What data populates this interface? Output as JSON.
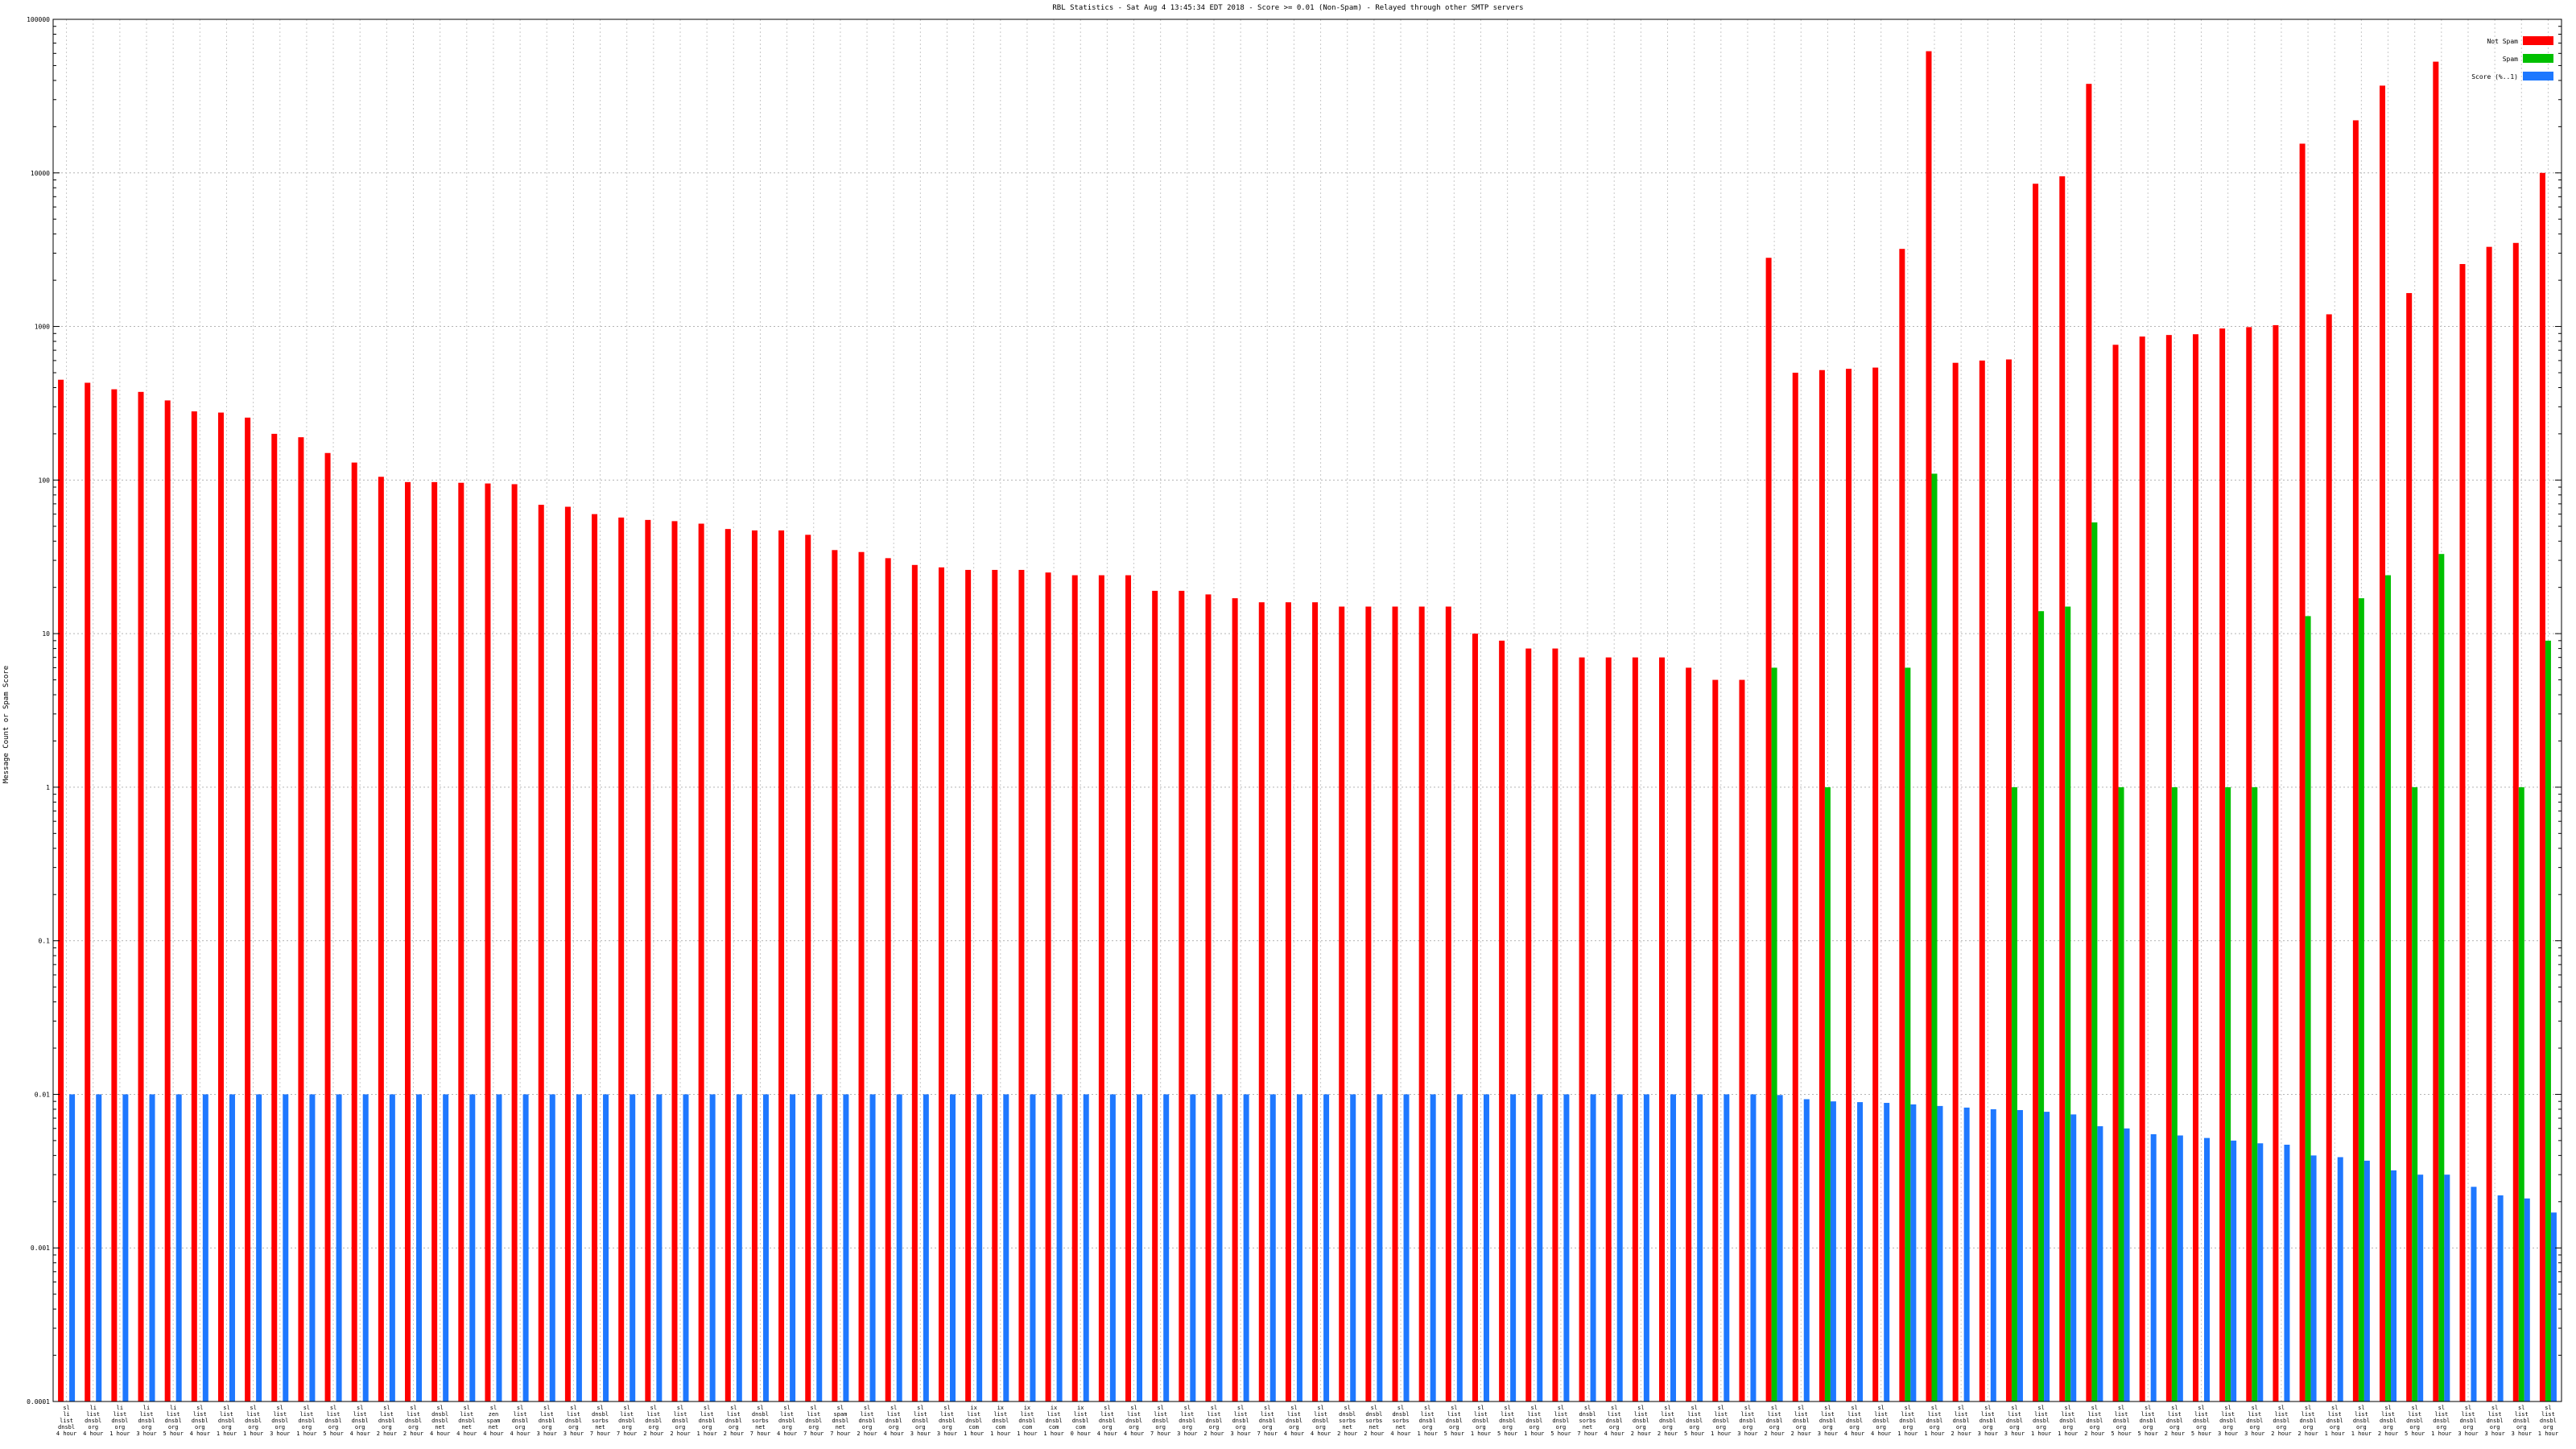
{
  "chart_data": {
    "type": "bar",
    "title": "RBL Statistics - Sat Aug  4 13:45:34 EDT 2018 - Score >= 0.01 (Non-Spam) - Relayed through other SMTP servers",
    "ylabel": "Message Count or Spam Score",
    "xlabel": "",
    "yscale": "log",
    "ylim": [
      0.0001,
      100000
    ],
    "y_ticks": [
      0.0001,
      0.001,
      0.01,
      0.1,
      1,
      10,
      100,
      1000,
      10000,
      100000
    ],
    "y_tick_labels": [
      "0.0001",
      "0.001",
      "0.01",
      "0.1",
      "1",
      "10",
      "100",
      "1000",
      "10000",
      "100000"
    ],
    "grid": true,
    "legend_position": "top-right",
    "series": [
      {
        "name": "Not Spam",
        "color": "#ff0000",
        "values": [
          450,
          430,
          390,
          375,
          330,
          280,
          275,
          255,
          200,
          190,
          150,
          130,
          105,
          97,
          97,
          96,
          95,
          94,
          69,
          67,
          60,
          57,
          55,
          54,
          52,
          48,
          47,
          47,
          44,
          35,
          34,
          31,
          28,
          27,
          26,
          26,
          26,
          25,
          24,
          24,
          24,
          19,
          19,
          18,
          17,
          16,
          16,
          16,
          15,
          15,
          15,
          15,
          15,
          10,
          9,
          8,
          8,
          7,
          7,
          7,
          7,
          6,
          5,
          5,
          2800,
          500,
          520,
          530,
          540,
          3200,
          62000,
          580,
          600,
          610,
          8500,
          9500,
          38000,
          760,
          860,
          880,
          890,
          970,
          990,
          1020,
          15500,
          1200,
          22000,
          37000,
          1650,
          53000,
          2550,
          3300,
          3500,
          10000
        ]
      },
      {
        "name": "Spam",
        "color": "#00c000",
        "values": [
          null,
          null,
          null,
          null,
          null,
          null,
          null,
          null,
          null,
          null,
          null,
          null,
          null,
          null,
          null,
          null,
          null,
          null,
          null,
          null,
          null,
          null,
          null,
          null,
          null,
          null,
          null,
          null,
          null,
          null,
          null,
          null,
          null,
          null,
          null,
          null,
          null,
          null,
          null,
          null,
          null,
          null,
          null,
          null,
          null,
          null,
          null,
          null,
          null,
          null,
          null,
          null,
          null,
          null,
          null,
          null,
          null,
          null,
          null,
          null,
          null,
          null,
          null,
          null,
          6,
          null,
          1,
          null,
          null,
          6,
          110,
          null,
          null,
          1,
          14,
          15,
          53,
          1,
          null,
          1,
          null,
          1,
          1,
          null,
          13,
          null,
          17,
          24,
          1,
          33,
          null,
          null,
          1,
          9
        ]
      },
      {
        "name": "Score (%..1)",
        "color": "#1e78ff",
        "values": [
          0.01,
          0.01,
          0.01,
          0.01,
          0.01,
          0.01,
          0.01,
          0.01,
          0.01,
          0.01,
          0.01,
          0.01,
          0.01,
          0.01,
          0.01,
          0.01,
          0.01,
          0.01,
          0.01,
          0.01,
          0.01,
          0.01,
          0.01,
          0.01,
          0.01,
          0.01,
          0.01,
          0.01,
          0.01,
          0.01,
          0.01,
          0.01,
          0.01,
          0.01,
          0.01,
          0.01,
          0.01,
          0.01,
          0.01,
          0.01,
          0.01,
          0.01,
          0.01,
          0.01,
          0.01,
          0.01,
          0.01,
          0.01,
          0.01,
          0.01,
          0.01,
          0.01,
          0.01,
          0.01,
          0.01,
          0.01,
          0.01,
          0.01,
          0.01,
          0.01,
          0.01,
          0.01,
          0.01,
          0.01,
          0.0099,
          0.0093,
          0.009,
          0.0089,
          0.0088,
          0.0086,
          0.0084,
          0.0082,
          0.008,
          0.0079,
          0.0077,
          0.0074,
          0.0062,
          0.006,
          0.0055,
          0.0054,
          0.0052,
          0.005,
          0.0048,
          0.0047,
          0.004,
          0.0039,
          0.0037,
          0.0032,
          0.003,
          0.003,
          0.0025,
          0.0022,
          0.0021,
          0.0017
        ]
      }
    ],
    "categories": [
      [
        "sl",
        "li",
        "list",
        "dnsbl",
        "4 hour"
      ],
      [
        "li",
        "list",
        "dnsbl",
        "org",
        "4 hour"
      ],
      [
        "li",
        "list",
        "dnsbl",
        "org",
        "1 hour"
      ],
      [
        "li",
        "list",
        "dnsbl",
        "org",
        "3 hour"
      ],
      [
        "li",
        "list",
        "dnsbl",
        "org",
        "5 hour"
      ],
      [
        "sl",
        "list",
        "dnsbl",
        "org",
        "4 hour"
      ],
      [
        "sl",
        "list",
        "dnsbl",
        "org",
        "1 hour"
      ],
      [
        "sl",
        "list",
        "dnsbl",
        "org",
        "1 hour"
      ],
      [
        "sl",
        "list",
        "dnsbl",
        "org",
        "3 hour"
      ],
      [
        "sl",
        "list",
        "dnsbl",
        "org",
        "1 hour"
      ],
      [
        "sl",
        "list",
        "dnsbl",
        "org",
        "5 hour"
      ],
      [
        "sl",
        "list",
        "dnsbl",
        "org",
        "4 hour"
      ],
      [
        "sl",
        "list",
        "dnsbl",
        "org",
        "2 hour"
      ],
      [
        "sl",
        "list",
        "dnsbl",
        "org",
        "2 hour"
      ],
      [
        "sl",
        "dnsbl",
        "dnsbl",
        "net",
        "4 hour"
      ],
      [
        "sl",
        "list",
        "dnsbl",
        "net",
        "4 hour"
      ],
      [
        "sl",
        "zen",
        "spam",
        "net",
        "4 hour"
      ],
      [
        "sl",
        "list",
        "dnsbl",
        "org",
        "4 hour"
      ],
      [
        "sl",
        "list",
        "dnsbl",
        "org",
        "3 hour"
      ],
      [
        "sl",
        "list",
        "dnsbl",
        "org",
        "3 hour"
      ],
      [
        "sl",
        "dnsbl",
        "sorbs",
        "net",
        "7 hour"
      ],
      [
        "sl",
        "list",
        "dnsbl",
        "org",
        "7 hour"
      ],
      [
        "sl",
        "list",
        "dnsbl",
        "org",
        "2 hour"
      ],
      [
        "sl",
        "list",
        "dnsbl",
        "org",
        "2 hour"
      ],
      [
        "sl",
        "list",
        "dnsbl",
        "org",
        "1 hour"
      ],
      [
        "sl",
        "list",
        "dnsbl",
        "org",
        "2 hour"
      ],
      [
        "sl",
        "dnsbl",
        "sorbs",
        "net",
        "7 hour"
      ],
      [
        "sl",
        "list",
        "dnsbl",
        "org",
        "4 hour"
      ],
      [
        "sl",
        "list",
        "dnsbl",
        "org",
        "7 hour"
      ],
      [
        "sl",
        "spam",
        "dnsbl",
        "net",
        "7 hour"
      ],
      [
        "sl",
        "list",
        "dnsbl",
        "org",
        "2 hour"
      ],
      [
        "sl",
        "list",
        "dnsbl",
        "org",
        "4 hour"
      ],
      [
        "sl",
        "list",
        "dnsbl",
        "org",
        "3 hour"
      ],
      [
        "sl",
        "list",
        "dnsbl",
        "org",
        "3 hour"
      ],
      [
        "ix",
        "list",
        "dnsbl",
        "com",
        "1 hour"
      ],
      [
        "ix",
        "list",
        "dnsbl",
        "com",
        "1 hour"
      ],
      [
        "ix",
        "list",
        "dnsbl",
        "com",
        "1 hour"
      ],
      [
        "ix",
        "list",
        "dnsbl",
        "com",
        "1 hour"
      ],
      [
        "ix",
        "list",
        "dnsbl",
        "com",
        "0 hour"
      ],
      [
        "sl",
        "list",
        "dnsbl",
        "org",
        "4 hour"
      ],
      [
        "sl",
        "list",
        "dnsbl",
        "org",
        "4 hour"
      ],
      [
        "sl",
        "list",
        "dnsbl",
        "org",
        "7 hour"
      ],
      [
        "sl",
        "list",
        "dnsbl",
        "org",
        "3 hour"
      ],
      [
        "sl",
        "list",
        "dnsbl",
        "org",
        "2 hour"
      ],
      [
        "sl",
        "list",
        "dnsbl",
        "org",
        "3 hour"
      ],
      [
        "sl",
        "list",
        "dnsbl",
        "org",
        "7 hour"
      ],
      [
        "sl",
        "list",
        "dnsbl",
        "org",
        "4 hour"
      ],
      [
        "sl",
        "list",
        "dnsbl",
        "org",
        "4 hour"
      ],
      [
        "sl",
        "dnsbl",
        "sorbs",
        "net",
        "2 hour"
      ],
      [
        "sl",
        "dnsbl",
        "sorbs",
        "net",
        "2 hour"
      ],
      [
        "sl",
        "dnsbl",
        "sorbs",
        "net",
        "4 hour"
      ],
      [
        "sl",
        "list",
        "dnsbl",
        "org",
        "1 hour"
      ],
      [
        "sl",
        "list",
        "dnsbl",
        "org",
        "5 hour"
      ],
      [
        "sl",
        "list",
        "dnsbl",
        "org",
        "1 hour"
      ],
      [
        "sl",
        "list",
        "dnsbl",
        "org",
        "5 hour"
      ],
      [
        "sl",
        "list",
        "dnsbl",
        "org",
        "1 hour"
      ],
      [
        "sl",
        "list",
        "dnsbl",
        "org",
        "5 hour"
      ],
      [
        "sl",
        "dnsbl",
        "sorbs",
        "net",
        "7 hour"
      ],
      [
        "sl",
        "list",
        "dnsbl",
        "org",
        "4 hour"
      ],
      [
        "sl",
        "list",
        "dnsbl",
        "org",
        "2 hour"
      ],
      [
        "sl",
        "list",
        "dnsbl",
        "org",
        "2 hour"
      ],
      [
        "sl",
        "list",
        "dnsbl",
        "org",
        "5 hour"
      ],
      [
        "sl",
        "list",
        "dnsbl",
        "org",
        "1 hour"
      ],
      [
        "sl",
        "list",
        "dnsbl",
        "org",
        "3 hour"
      ],
      [
        "sl",
        "list",
        "dnsbl",
        "org",
        "2 hour"
      ],
      [
        "sl",
        "list",
        "dnsbl",
        "org",
        "2 hour"
      ],
      [
        "sl",
        "list",
        "dnsbl",
        "org",
        "3 hour"
      ],
      [
        "sl",
        "list",
        "dnsbl",
        "org",
        "4 hour"
      ],
      [
        "sl",
        "list",
        "dnsbl",
        "org",
        "4 hour"
      ],
      [
        "sl",
        "list",
        "dnsbl",
        "org",
        "1 hour"
      ],
      [
        "sl",
        "list",
        "dnsbl",
        "org",
        "1 hour"
      ],
      [
        "sl",
        "list",
        "dnsbl",
        "org",
        "2 hour"
      ],
      [
        "sl",
        "list",
        "dnsbl",
        "org",
        "3 hour"
      ],
      [
        "sl",
        "list",
        "dnsbl",
        "org",
        "3 hour"
      ],
      [
        "sl",
        "list",
        "dnsbl",
        "org",
        "1 hour"
      ],
      [
        "sl",
        "list",
        "dnsbl",
        "org",
        "1 hour"
      ],
      [
        "sl",
        "list",
        "dnsbl",
        "org",
        "2 hour"
      ],
      [
        "sl",
        "list",
        "dnsbl",
        "org",
        "5 hour"
      ],
      [
        "sl",
        "list",
        "dnsbl",
        "org",
        "5 hour"
      ],
      [
        "sl",
        "list",
        "dnsbl",
        "org",
        "2 hour"
      ],
      [
        "sl",
        "list",
        "dnsbl",
        "org",
        "5 hour"
      ],
      [
        "sl",
        "list",
        "dnsbl",
        "org",
        "3 hour"
      ],
      [
        "sl",
        "list",
        "dnsbl",
        "org",
        "3 hour"
      ],
      [
        "sl",
        "list",
        "dnsbl",
        "org",
        "2 hour"
      ],
      [
        "sl",
        "list",
        "dnsbl",
        "org",
        "2 hour"
      ],
      [
        "sl",
        "list",
        "dnsbl",
        "org",
        "1 hour"
      ],
      [
        "sl",
        "list",
        "dnsbl",
        "org",
        "1 hour"
      ],
      [
        "sl",
        "list",
        "dnsbl",
        "org",
        "2 hour"
      ],
      [
        "sl",
        "list",
        "dnsbl",
        "org",
        "5 hour"
      ],
      [
        "sl",
        "list",
        "dnsbl",
        "org",
        "1 hour"
      ],
      [
        "sl",
        "list",
        "dnsbl",
        "org",
        "3 hour"
      ],
      [
        "sl",
        "list",
        "dnsbl",
        "org",
        "3 hour"
      ],
      [
        "sl",
        "list",
        "dnsbl",
        "org",
        "3 hour"
      ],
      [
        "sl",
        "list",
        "dnsbl",
        "org",
        "1 hour"
      ]
    ]
  }
}
